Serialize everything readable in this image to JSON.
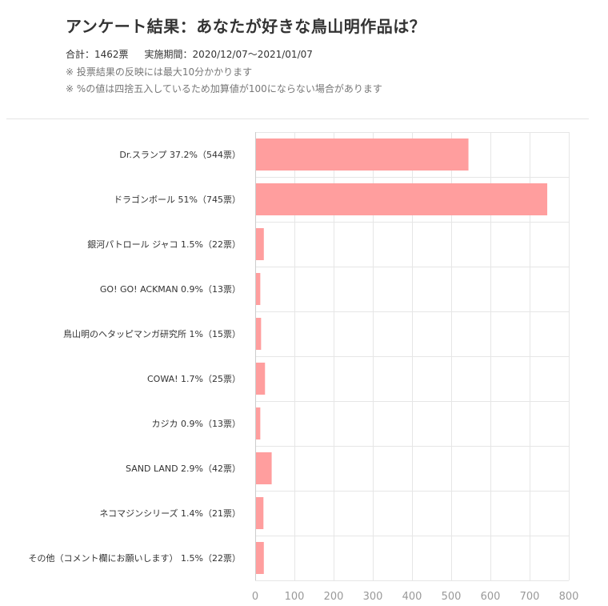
{
  "header": {
    "title": "アンケート結果：あなたが好きな鳥山明作品は？",
    "total": "合計：1462票",
    "period": "実施期間：2020/12/07〜2021/01/07",
    "notes": [
      "※ 投票結果の反映には最大10分かかります",
      "※ %の値は四捨五入しているため加算値が100にならない場合があります"
    ]
  },
  "colors": {
    "bar": "#ff9e9e",
    "grid": "#e6e6e6",
    "axis": "#cccccc",
    "divider": "#e4e4e4"
  },
  "chart_data": {
    "type": "bar",
    "orientation": "horizontal",
    "categories": [
      "Dr.スランプ 37.2%（544票）",
      "ドラゴンボール 51%（745票）",
      "銀河パトロール ジャコ 1.5%（22票）",
      "GO! GO! ACKMAN 0.9%（13票）",
      "鳥山明のヘタッピマンガ研究所 1%（15票）",
      "COWA! 1.7%（25票）",
      "カジカ 0.9%（13票）",
      "SAND LAND 2.9%（42票）",
      "ネコマジンシリーズ 1.4%（21票）",
      "その他（コメント欄にお願いします） 1.5%（22票）"
    ],
    "values": [
      544,
      745,
      22,
      13,
      15,
      25,
      13,
      42,
      21,
      22
    ],
    "xlim": [
      0,
      800
    ],
    "xticks": [
      "0",
      "100",
      "200",
      "300",
      "400",
      "500",
      "600",
      "700",
      "800"
    ],
    "grid": true,
    "legend": "none"
  }
}
